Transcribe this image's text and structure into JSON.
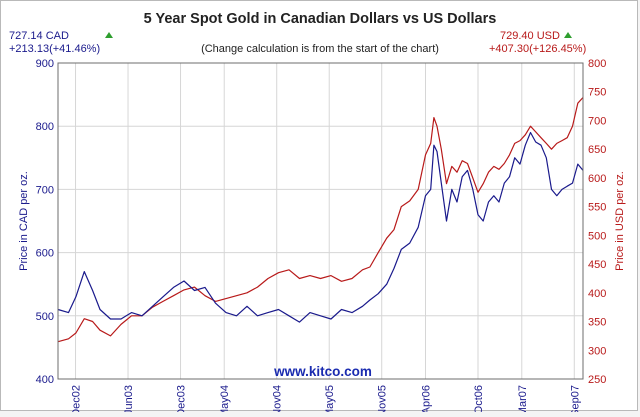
{
  "chart_data": {
    "type": "line",
    "title": "5 Year Spot Gold in Canadian Dollars vs US Dollars",
    "subtitle": "(Change calculation is from the start of the chart)",
    "watermark": "www.kitco.com",
    "left_summary": {
      "price": "727.14 CAD",
      "change": "+213.13(+41.46%)"
    },
    "right_summary": {
      "price": "729.40 USD",
      "change": "+407.30(+126.45%)"
    },
    "ylabel_left": "Price in CAD per oz.",
    "ylabel_right": "Price in USD per oz.",
    "ylim_left": [
      400,
      900
    ],
    "ylim_right": [
      250,
      800
    ],
    "yticks_left": [
      400,
      500,
      600,
      700,
      800,
      900
    ],
    "yticks_right": [
      250,
      300,
      350,
      400,
      450,
      500,
      550,
      600,
      650,
      700,
      750,
      800
    ],
    "x_range": [
      2002.75,
      2007.75
    ],
    "x_ticks": [
      {
        "label": "Dec02",
        "x": 2002.917
      },
      {
        "label": "Jun03",
        "x": 2003.417
      },
      {
        "label": "Dec03",
        "x": 2003.917
      },
      {
        "label": "May04",
        "x": 2004.333
      },
      {
        "label": "Nov04",
        "x": 2004.833
      },
      {
        "label": "May05",
        "x": 2005.333
      },
      {
        "label": "Nov05",
        "x": 2005.833
      },
      {
        "label": "Apr06",
        "x": 2006.25
      },
      {
        "label": "Oct06",
        "x": 2006.75
      },
      {
        "label": "Mar07",
        "x": 2007.167
      },
      {
        "label": "Sep07",
        "x": 2007.667
      }
    ],
    "grid": true,
    "colors": {
      "cad": "#1a1a8c",
      "usd": "#b81a1a",
      "up_arrow": "#2e9e2e",
      "title": "#222222"
    },
    "series": [
      {
        "name": "CAD",
        "axis": "left",
        "x": [
          2002.75,
          2002.85,
          2002.92,
          2003.0,
          2003.08,
          2003.15,
          2003.25,
          2003.35,
          2003.45,
          2003.55,
          2003.65,
          2003.75,
          2003.85,
          2003.95,
          2004.05,
          2004.15,
          2004.25,
          2004.35,
          2004.45,
          2004.55,
          2004.65,
          2004.75,
          2004.85,
          2004.95,
          2005.05,
          2005.15,
          2005.25,
          2005.35,
          2005.45,
          2005.55,
          2005.65,
          2005.72,
          2005.8,
          2005.88,
          2005.95,
          2006.02,
          2006.1,
          2006.18,
          2006.25,
          2006.3,
          2006.33,
          2006.36,
          2006.4,
          2006.45,
          2006.5,
          2006.55,
          2006.6,
          2006.65,
          2006.7,
          2006.75,
          2006.8,
          2006.85,
          2006.9,
          2006.95,
          2007.0,
          2007.05,
          2007.1,
          2007.15,
          2007.2,
          2007.25,
          2007.3,
          2007.35,
          2007.4,
          2007.45,
          2007.5,
          2007.55,
          2007.6,
          2007.65,
          2007.7,
          2007.75
        ],
        "y": [
          510,
          505,
          530,
          570,
          540,
          510,
          495,
          495,
          505,
          500,
          515,
          530,
          545,
          555,
          540,
          545,
          520,
          505,
          500,
          515,
          500,
          505,
          510,
          500,
          490,
          505,
          500,
          495,
          510,
          505,
          515,
          525,
          535,
          550,
          575,
          605,
          615,
          640,
          690,
          700,
          770,
          760,
          710,
          650,
          700,
          680,
          720,
          730,
          700,
          660,
          650,
          680,
          690,
          680,
          710,
          720,
          750,
          740,
          770,
          790,
          775,
          770,
          750,
          700,
          690,
          700,
          705,
          710,
          740,
          730
        ]
      },
      {
        "name": "USD",
        "axis": "right",
        "x": [
          2002.75,
          2002.85,
          2002.92,
          2003.0,
          2003.08,
          2003.15,
          2003.25,
          2003.35,
          2003.45,
          2003.55,
          2003.65,
          2003.75,
          2003.85,
          2003.95,
          2004.05,
          2004.15,
          2004.25,
          2004.35,
          2004.45,
          2004.55,
          2004.65,
          2004.75,
          2004.85,
          2004.95,
          2005.05,
          2005.15,
          2005.25,
          2005.35,
          2005.45,
          2005.55,
          2005.65,
          2005.72,
          2005.8,
          2005.88,
          2005.95,
          2006.02,
          2006.1,
          2006.18,
          2006.25,
          2006.3,
          2006.33,
          2006.36,
          2006.4,
          2006.45,
          2006.5,
          2006.55,
          2006.6,
          2006.65,
          2006.7,
          2006.75,
          2006.8,
          2006.85,
          2006.9,
          2006.95,
          2007.0,
          2007.05,
          2007.1,
          2007.15,
          2007.2,
          2007.25,
          2007.3,
          2007.35,
          2007.4,
          2007.45,
          2007.5,
          2007.55,
          2007.6,
          2007.65,
          2007.7,
          2007.75
        ],
        "y": [
          315,
          320,
          330,
          355,
          350,
          335,
          325,
          345,
          360,
          360,
          375,
          385,
          395,
          405,
          410,
          395,
          385,
          390,
          395,
          400,
          410,
          425,
          435,
          440,
          425,
          430,
          425,
          430,
          420,
          425,
          440,
          445,
          470,
          495,
          510,
          550,
          560,
          580,
          640,
          660,
          705,
          690,
          650,
          590,
          620,
          610,
          630,
          625,
          600,
          575,
          590,
          610,
          620,
          615,
          625,
          640,
          660,
          665,
          675,
          690,
          680,
          670,
          660,
          650,
          660,
          665,
          670,
          690,
          730,
          740
        ]
      }
    ]
  }
}
